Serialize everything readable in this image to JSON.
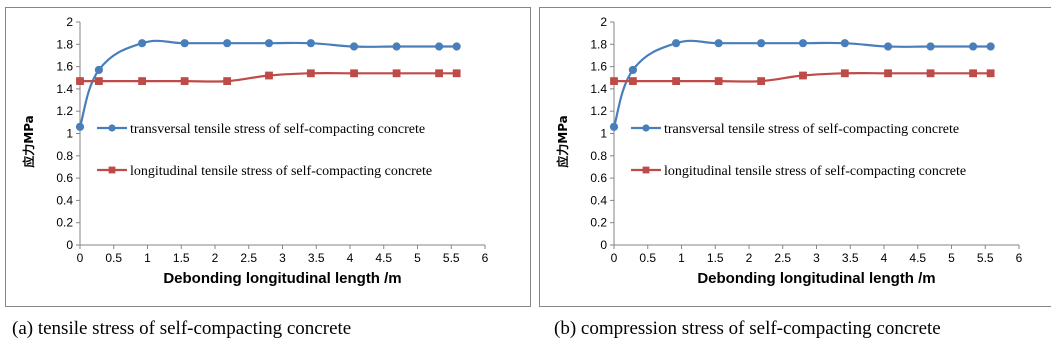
{
  "captions": {
    "a": "(a) tensile stress of self-compacting concrete",
    "b": "(b) compression stress of self-compacting concrete"
  },
  "colors": {
    "series1": "#4a7ebb",
    "series2": "#be4b48",
    "border": "#868686"
  },
  "chart_data": [
    {
      "type": "line",
      "title": "",
      "xlabel": "Debonding longitudinal length /m",
      "ylabel": "应力MPa",
      "xlim": [
        0,
        6
      ],
      "ylim": [
        0,
        2
      ],
      "x_ticks": [
        "0",
        "0.5",
        "1",
        "1.5",
        "2",
        "2.5",
        "3",
        "3.5",
        "4",
        "4.5",
        "5",
        "5.5",
        "6"
      ],
      "y_ticks": [
        "0",
        "0.2",
        "0.4",
        "0.6",
        "0.8",
        "1",
        "1.2",
        "1.4",
        "1.6",
        "1.8",
        "2"
      ],
      "grid": false,
      "legend_position": "center-right",
      "series": [
        {
          "name": "transversal tensile stress of self-compacting concrete",
          "color": "#4a7ebb",
          "marker": "circle",
          "x": [
            0,
            0.28,
            0.92,
            1.55,
            2.18,
            2.8,
            3.42,
            4.06,
            4.69,
            5.32,
            5.58
          ],
          "y": [
            1.06,
            1.57,
            1.81,
            1.81,
            1.81,
            1.81,
            1.81,
            1.78,
            1.78,
            1.78,
            1.78
          ]
        },
        {
          "name": "longitudinal tensile stress of self-compacting concrete",
          "color": "#be4b48",
          "marker": "square",
          "x": [
            0,
            0.28,
            0.92,
            1.55,
            2.18,
            2.8,
            3.42,
            4.06,
            4.69,
            5.32,
            5.58
          ],
          "y": [
            1.47,
            1.47,
            1.47,
            1.47,
            1.47,
            1.52,
            1.54,
            1.54,
            1.54,
            1.54,
            1.54
          ]
        }
      ]
    },
    {
      "type": "line",
      "title": "",
      "xlabel": "Debonding longitudinal length /m",
      "ylabel": "应力MPa",
      "xlim": [
        0,
        6
      ],
      "ylim": [
        0,
        2
      ],
      "x_ticks": [
        "0",
        "0.5",
        "1",
        "1.5",
        "2",
        "2.5",
        "3",
        "3.5",
        "4",
        "4.5",
        "5",
        "5.5",
        "6"
      ],
      "y_ticks": [
        "0",
        "0.2",
        "0.4",
        "0.6",
        "0.8",
        "1",
        "1.2",
        "1.4",
        "1.6",
        "1.8",
        "2"
      ],
      "grid": false,
      "legend_position": "center-right",
      "series": [
        {
          "name": "transversal tensile stress of self-compacting concrete",
          "color": "#4a7ebb",
          "marker": "circle",
          "x": [
            0,
            0.28,
            0.92,
            1.55,
            2.18,
            2.8,
            3.42,
            4.06,
            4.69,
            5.32,
            5.58
          ],
          "y": [
            1.06,
            1.57,
            1.81,
            1.81,
            1.81,
            1.81,
            1.81,
            1.78,
            1.78,
            1.78,
            1.78
          ]
        },
        {
          "name": "longitudinal tensile stress of self-compacting concrete",
          "color": "#be4b48",
          "marker": "square",
          "x": [
            0,
            0.28,
            0.92,
            1.55,
            2.18,
            2.8,
            3.42,
            4.06,
            4.69,
            5.32,
            5.58
          ],
          "y": [
            1.47,
            1.47,
            1.47,
            1.47,
            1.47,
            1.52,
            1.54,
            1.54,
            1.54,
            1.54,
            1.54
          ]
        }
      ]
    }
  ]
}
